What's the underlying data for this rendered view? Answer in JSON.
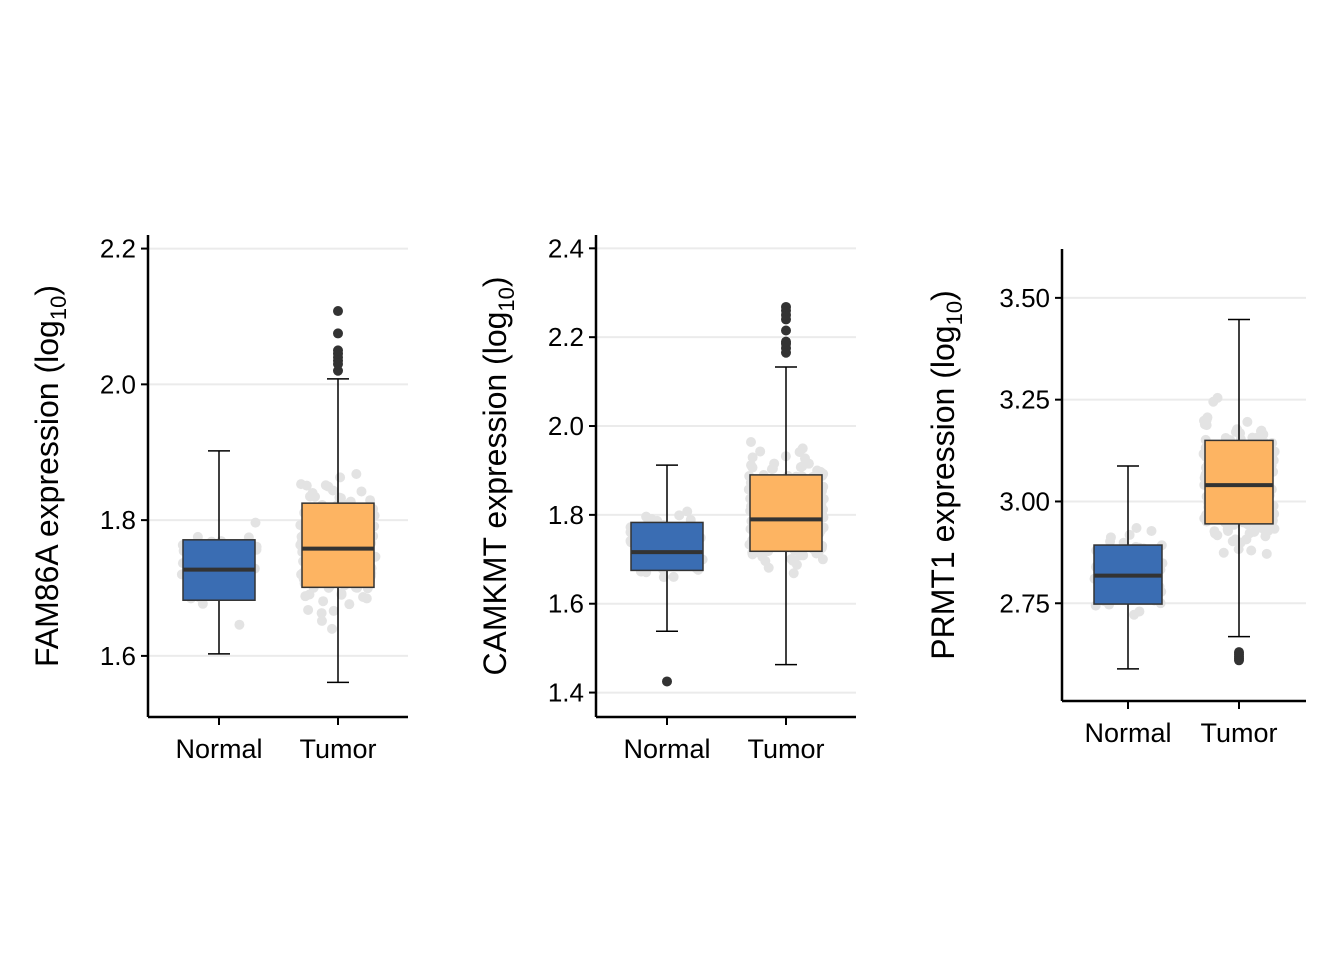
{
  "colors": {
    "normal_fill": "#3a6db3",
    "tumor_fill": "#fdb462",
    "box_border": "#333333",
    "median": "#333333",
    "points": "#e3e3e3",
    "outliers": "#333333",
    "grid": "#ebebeb",
    "axis": "#000000"
  },
  "chart_data": [
    {
      "type": "box",
      "gene": "FAM86A",
      "ylabel_main": "FAM86A expression (log",
      "ylabel_sub": "10",
      "ylabel_close": ")",
      "categories": [
        "Normal",
        "Tumor"
      ],
      "yticks": [
        1.6,
        1.8,
        2.0,
        2.2
      ],
      "ytick_labels": [
        "1.6",
        "1.8",
        "2.0",
        "2.2"
      ],
      "ylim": [
        1.51,
        2.22
      ],
      "grid": true,
      "boxes": [
        {
          "name": "Normal",
          "whisker_low": 1.603,
          "q1": 1.682,
          "median": 1.727,
          "q3": 1.771,
          "whisker_high": 1.902,
          "outliers": [],
          "jitter_min": 1.6,
          "jitter_max": 1.91,
          "jitter_n": 70
        },
        {
          "name": "Tumor",
          "whisker_low": 1.561,
          "q1": 1.701,
          "median": 1.758,
          "q3": 1.825,
          "whisker_high": 2.008,
          "outliers": [
            2.02,
            2.03,
            2.035,
            2.04,
            2.045,
            2.05,
            2.075,
            2.108
          ],
          "jitter_min": 1.56,
          "jitter_max": 2.08,
          "jitter_n": 260
        }
      ]
    },
    {
      "type": "box",
      "gene": "CAMKMT",
      "ylabel_main": "CAMKMT expression (log",
      "ylabel_sub": "10",
      "ylabel_close": ")",
      "categories": [
        "Normal",
        "Tumor"
      ],
      "yticks": [
        1.4,
        1.6,
        1.8,
        2.0,
        2.2,
        2.4
      ],
      "ytick_labels": [
        "1.4",
        "1.6",
        "1.8",
        "2.0",
        "2.2",
        "2.4"
      ],
      "ylim": [
        1.345,
        2.43
      ],
      "grid": true,
      "boxes": [
        {
          "name": "Normal",
          "whisker_low": 1.538,
          "q1": 1.675,
          "median": 1.716,
          "q3": 1.783,
          "whisker_high": 1.912,
          "outliers": [
            1.425
          ],
          "jitter_min": 1.42,
          "jitter_max": 1.92,
          "jitter_n": 70
        },
        {
          "name": "Tumor",
          "whisker_low": 1.463,
          "q1": 1.718,
          "median": 1.79,
          "q3": 1.89,
          "whisker_high": 2.133,
          "outliers": [
            2.165,
            2.175,
            2.185,
            2.19,
            2.215,
            2.24,
            2.25,
            2.26,
            2.268
          ],
          "jitter_min": 1.46,
          "jitter_max": 2.27,
          "jitter_n": 260
        }
      ]
    },
    {
      "type": "box",
      "gene": "PRMT1",
      "ylabel_main": "PRMT1 expression (log",
      "ylabel_sub": "10",
      "ylabel_close": ")",
      "categories": [
        "Normal",
        "Tumor"
      ],
      "yticks": [
        2.75,
        3.0,
        3.25,
        3.5
      ],
      "ytick_labels": [
        "2.75",
        "3.00",
        "3.25",
        "3.50"
      ],
      "ylim": [
        2.51,
        3.62
      ],
      "grid": true,
      "boxes": [
        {
          "name": "Normal",
          "whisker_low": 2.589,
          "q1": 2.748,
          "median": 2.818,
          "q3": 2.893,
          "whisker_high": 3.087,
          "outliers": [],
          "jitter_min": 2.59,
          "jitter_max": 3.09,
          "jitter_n": 70
        },
        {
          "name": "Tumor",
          "whisker_low": 2.668,
          "q1": 2.945,
          "median": 3.04,
          "q3": 3.15,
          "whisker_high": 3.447,
          "outliers": [
            2.61,
            2.615,
            2.62,
            2.625,
            2.63
          ],
          "jitter_min": 2.61,
          "jitter_max": 3.45,
          "jitter_n": 260
        }
      ]
    }
  ]
}
